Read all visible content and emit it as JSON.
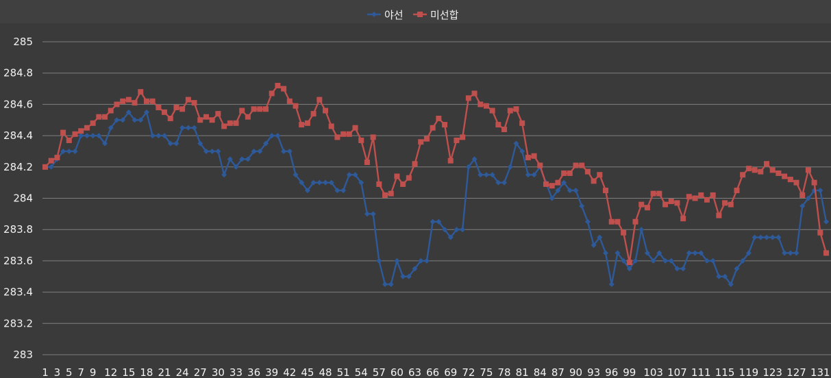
{
  "chart_data": {
    "type": "line",
    "title": "",
    "xlabel": "",
    "ylabel": "",
    "ylim": [
      283,
      285
    ],
    "ytick_step": 0.2,
    "grid": true,
    "legend_position": "top",
    "x": [
      1,
      2,
      3,
      4,
      5,
      6,
      7,
      8,
      9,
      10,
      11,
      12,
      13,
      14,
      15,
      16,
      17,
      18,
      19,
      20,
      21,
      22,
      23,
      24,
      25,
      26,
      27,
      28,
      29,
      30,
      31,
      32,
      33,
      34,
      35,
      36,
      37,
      38,
      39,
      40,
      41,
      42,
      43,
      44,
      45,
      46,
      47,
      48,
      49,
      50,
      51,
      52,
      53,
      54,
      55,
      56,
      57,
      58,
      59,
      60,
      61,
      62,
      63,
      64,
      65,
      66,
      67,
      68,
      69,
      70,
      71,
      72,
      73,
      74,
      75,
      76,
      77,
      78,
      79,
      80,
      81,
      82,
      83,
      84,
      85,
      86,
      87,
      88,
      89,
      90,
      91,
      92,
      93,
      94,
      95,
      96,
      97,
      98,
      99,
      100,
      101,
      102,
      103,
      104,
      105,
      106,
      107,
      108,
      109,
      110,
      111,
      112,
      113,
      114,
      115,
      116,
      117,
      118,
      119,
      120,
      121,
      122,
      123,
      124,
      125,
      126,
      127,
      128,
      129,
      130,
      131,
      132
    ],
    "xtick_labels": [
      "1",
      "3",
      "5",
      "7",
      "9",
      "12",
      "15",
      "18",
      "21",
      "24",
      "27",
      "30",
      "33",
      "36",
      "39",
      "42",
      "45",
      "48",
      "51",
      "54",
      "57",
      "60",
      "63",
      "66",
      "69",
      "72",
      "75",
      "78",
      "81",
      "84",
      "87",
      "90",
      "93",
      "96",
      "99",
      "103",
      "107",
      "111",
      "115",
      "119",
      "123",
      "127",
      "131"
    ],
    "xtick_positions": [
      1,
      3,
      5,
      7,
      9,
      12,
      15,
      18,
      21,
      24,
      27,
      30,
      33,
      36,
      39,
      42,
      45,
      48,
      51,
      54,
      57,
      60,
      63,
      66,
      69,
      72,
      75,
      78,
      81,
      84,
      87,
      90,
      93,
      96,
      99,
      103,
      107,
      111,
      115,
      119,
      123,
      127,
      131
    ],
    "series": [
      {
        "name": "야선",
        "color": "#2e5a9a",
        "marker": "diamond",
        "values": [
          284.2,
          284.2,
          284.25,
          284.3,
          284.3,
          284.3,
          284.4,
          284.4,
          284.4,
          284.4,
          284.35,
          284.45,
          284.5,
          284.5,
          284.55,
          284.5,
          284.5,
          284.55,
          284.4,
          284.4,
          284.4,
          284.35,
          284.35,
          284.45,
          284.45,
          284.45,
          284.35,
          284.3,
          284.3,
          284.3,
          284.15,
          284.25,
          284.2,
          284.25,
          284.25,
          284.3,
          284.3,
          284.35,
          284.4,
          284.4,
          284.3,
          284.3,
          284.15,
          284.1,
          284.05,
          284.1,
          284.1,
          284.1,
          284.1,
          284.05,
          284.05,
          284.15,
          284.15,
          284.1,
          283.9,
          283.9,
          283.6,
          283.45,
          283.45,
          283.6,
          283.5,
          283.5,
          283.55,
          283.6,
          283.6,
          283.85,
          283.85,
          283.8,
          283.75,
          283.8,
          283.8,
          284.2,
          284.25,
          284.15,
          284.15,
          284.15,
          284.1,
          284.1,
          284.2,
          284.35,
          284.3,
          284.15,
          284.15,
          284.2,
          284.1,
          284.0,
          284.05,
          284.1,
          284.05,
          284.05,
          283.95,
          283.85,
          283.7,
          283.75,
          283.65,
          283.45,
          283.65,
          283.6,
          283.55,
          283.6,
          283.8,
          283.65,
          283.6,
          283.65,
          283.6,
          283.6,
          283.55,
          283.55,
          283.65,
          283.65,
          283.65,
          283.6,
          283.6,
          283.5,
          283.5,
          283.45,
          283.55,
          283.6,
          283.65,
          283.75,
          283.75,
          283.75,
          283.75,
          283.75,
          283.65,
          283.65,
          283.65,
          283.95,
          284.0,
          284.05,
          284.05,
          283.85
        ]
      },
      {
        "name": "미선합",
        "color": "#c0504d",
        "marker": "square",
        "values": [
          284.2,
          284.24,
          284.26,
          284.42,
          284.37,
          284.41,
          284.43,
          284.45,
          284.48,
          284.52,
          284.52,
          284.56,
          284.6,
          284.62,
          284.63,
          284.61,
          284.68,
          284.62,
          284.62,
          284.58,
          284.55,
          284.51,
          284.58,
          284.57,
          284.63,
          284.61,
          284.5,
          284.52,
          284.5,
          284.54,
          284.46,
          284.48,
          284.48,
          284.56,
          284.52,
          284.57,
          284.57,
          284.57,
          284.67,
          284.72,
          284.7,
          284.62,
          284.59,
          284.47,
          284.48,
          284.54,
          284.63,
          284.56,
          284.46,
          284.39,
          284.41,
          284.41,
          284.45,
          284.37,
          284.23,
          284.39,
          284.09,
          284.02,
          284.03,
          284.14,
          284.09,
          284.13,
          284.22,
          284.36,
          284.38,
          284.45,
          284.51,
          284.47,
          284.24,
          284.37,
          284.39,
          284.64,
          284.67,
          284.6,
          284.59,
          284.56,
          284.47,
          284.44,
          284.56,
          284.57,
          284.48,
          284.26,
          284.27,
          284.21,
          284.09,
          284.08,
          284.1,
          284.16,
          284.16,
          284.21,
          284.21,
          284.17,
          284.11,
          284.15,
          284.05,
          283.85,
          283.85,
          283.78,
          283.59,
          283.85,
          283.96,
          283.94,
          284.03,
          284.03,
          283.96,
          283.98,
          283.97,
          283.87,
          284.01,
          284.0,
          284.02,
          283.99,
          284.02,
          283.89,
          283.97,
          283.96,
          284.05,
          284.15,
          284.19,
          284.18,
          284.17,
          284.22,
          284.18,
          284.16,
          284.14,
          284.12,
          284.1,
          284.02,
          284.18,
          284.1,
          283.78,
          283.65
        ]
      }
    ]
  }
}
